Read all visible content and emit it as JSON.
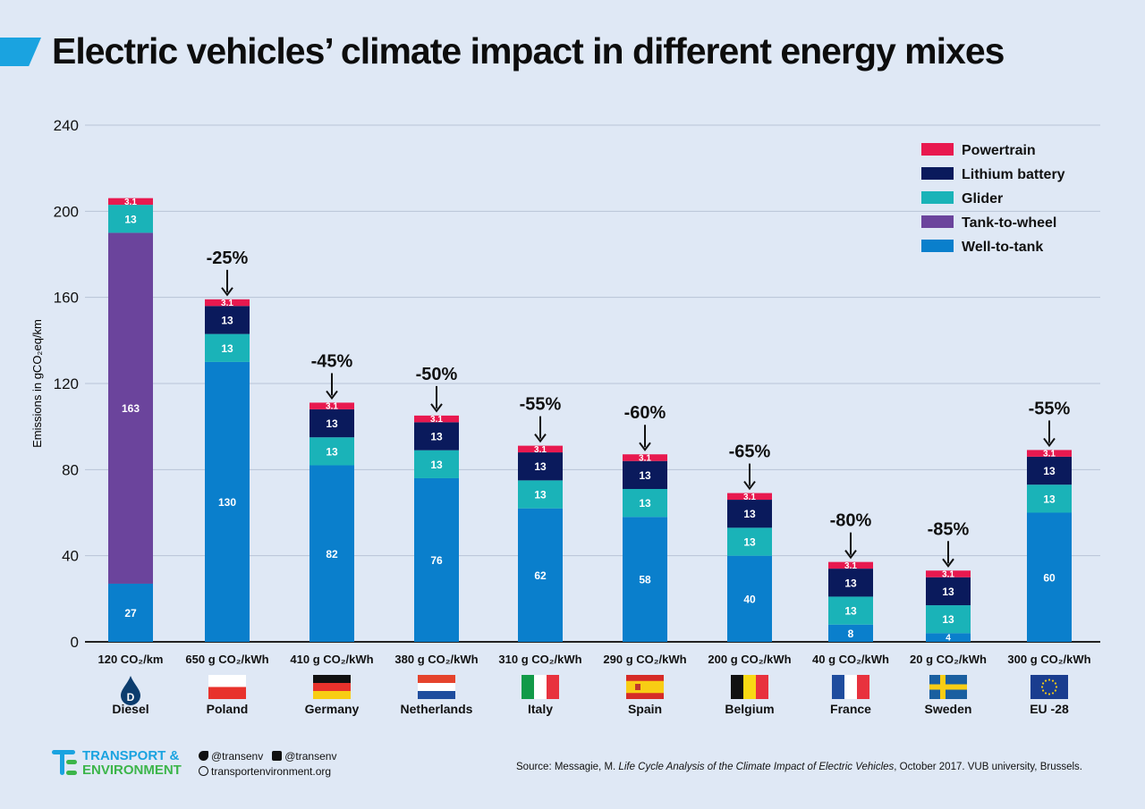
{
  "title": "Electric vehicles’ climate impact in different energy mixes",
  "chart_data": {
    "type": "bar",
    "stacked": true,
    "ylabel": "Emissions in gCO₂eq/km",
    "ylim": [
      0,
      240
    ],
    "yticks": [
      0,
      40,
      80,
      120,
      160,
      200,
      240
    ],
    "grid": true,
    "legend_position": "top-right",
    "categories": [
      "Diesel",
      "Poland",
      "Germany",
      "Netherlands",
      "Italy",
      "Spain",
      "Belgium",
      "France",
      "Sweden",
      "EU -28"
    ],
    "category_sublabels": [
      "120 CO₂/km",
      "650 g CO₂/kWh",
      "410 g CO₂/kWh",
      "380 g CO₂/kWh",
      "310 g CO₂/kWh",
      "290 g CO₂/kWh",
      "200 g CO₂/kWh",
      "40 g CO₂/kWh",
      "20 g CO₂/kWh",
      "300 g CO₂/kWh"
    ],
    "category_icons": [
      "diesel-drop-icon",
      "flag-poland-icon",
      "flag-germany-icon",
      "flag-netherlands-icon",
      "flag-italy-icon",
      "flag-spain-icon",
      "flag-belgium-icon",
      "flag-france-icon",
      "flag-sweden-icon",
      "flag-eu-icon"
    ],
    "diesel_icon_letter": "D",
    "series": [
      {
        "name": "Well-to-tank",
        "color": "#0a7fcc",
        "values": [
          27,
          130,
          82,
          76,
          62,
          58,
          40,
          8,
          4,
          60
        ]
      },
      {
        "name": "Tank-to-wheel",
        "color": "#6b449c",
        "values": [
          163,
          0,
          0,
          0,
          0,
          0,
          0,
          0,
          0,
          0
        ]
      },
      {
        "name": "Glider",
        "color": "#1ab3b8",
        "values": [
          13,
          13,
          13,
          13,
          13,
          13,
          13,
          13,
          13,
          13
        ]
      },
      {
        "name": "Lithium battery",
        "color": "#0a1a5c",
        "values": [
          0,
          13,
          13,
          13,
          13,
          13,
          13,
          13,
          13,
          13
        ]
      },
      {
        "name": "Powertrain",
        "color": "#e8194f",
        "values": [
          3.1,
          3.1,
          3.1,
          3.1,
          3.1,
          3.1,
          3.1,
          3.1,
          3.1,
          3.1
        ]
      }
    ],
    "annotations": [
      "",
      "-25%",
      "-45%",
      "-50%",
      "-55%",
      "-60%",
      "-65%",
      "-80%",
      "-85%",
      "-55%"
    ]
  },
  "footer": {
    "logo_line1": "TRANSPORT &",
    "logo_line2": "ENVIRONMENT",
    "twitter": "@transenv",
    "facebook": "@transenv",
    "website": "transportenvironment.org",
    "source_prefix": "Source: Messagie, M. ",
    "source_title": "Life Cycle Analysis of the Climate Impact of Electric Vehicles",
    "source_suffix": ", October 2017. VUB university, Brussels."
  }
}
